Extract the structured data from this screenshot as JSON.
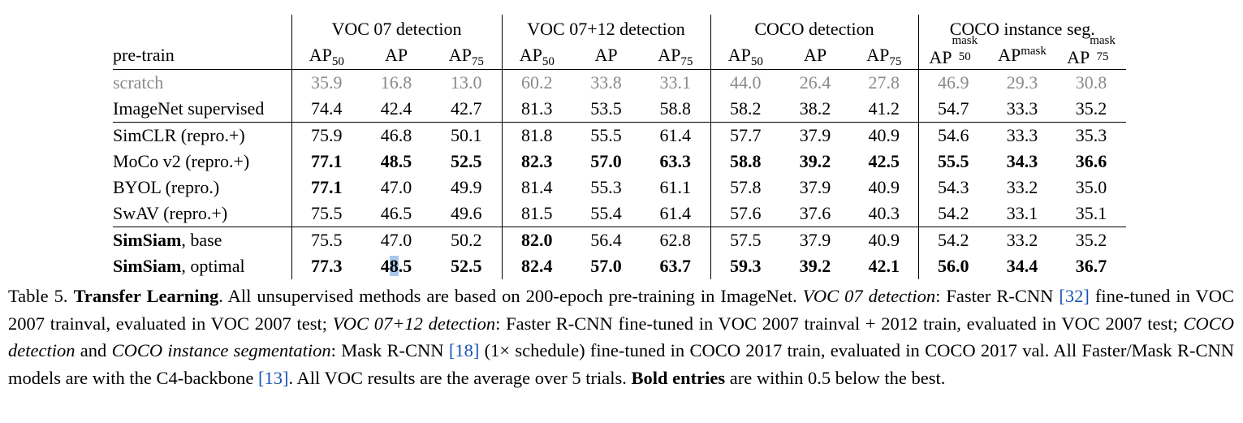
{
  "table": {
    "groups": [
      "VOC 07 detection",
      "VOC 07+12 detection",
      "COCO detection",
      "COCO instance seg."
    ],
    "pretrain_header": "pre-train",
    "col_base": [
      "AP",
      "AP",
      "AP",
      "AP",
      "AP",
      "AP",
      "AP",
      "AP",
      "AP",
      "AP",
      "AP",
      "AP"
    ],
    "col_sub": [
      "50",
      "",
      "75",
      "50",
      "",
      "75",
      "50",
      "",
      "75",
      "50",
      "",
      "75"
    ],
    "col_sup": [
      "",
      "",
      "",
      "",
      "",
      "",
      "",
      "",
      "",
      "mask",
      "mask",
      "mask"
    ],
    "rows": [
      {
        "name": "scratch",
        "name_bold": "",
        "values": [
          "35.9",
          "16.8",
          "13.0",
          "60.2",
          "33.8",
          "33.1",
          "44.0",
          "26.4",
          "27.8",
          "46.9",
          "29.3",
          "30.8"
        ],
        "bold": []
      },
      {
        "name": "ImageNet supervised",
        "name_bold": "",
        "values": [
          "74.4",
          "42.4",
          "42.7",
          "81.3",
          "53.5",
          "58.8",
          "58.2",
          "38.2",
          "41.2",
          "54.7",
          "33.3",
          "35.2"
        ],
        "bold": []
      },
      {
        "name": "SimCLR (repro.+)",
        "name_bold": "",
        "values": [
          "75.9",
          "46.8",
          "50.1",
          "81.8",
          "55.5",
          "61.4",
          "57.7",
          "37.9",
          "40.9",
          "54.6",
          "33.3",
          "35.3"
        ],
        "bold": []
      },
      {
        "name": "MoCo v2 (repro.+)",
        "name_bold": "",
        "values": [
          "77.1",
          "48.5",
          "52.5",
          "82.3",
          "57.0",
          "63.3",
          "58.8",
          "39.2",
          "42.5",
          "55.5",
          "34.3",
          "36.6"
        ],
        "bold": [
          0,
          1,
          2,
          3,
          4,
          5,
          6,
          7,
          8,
          9,
          10,
          11
        ]
      },
      {
        "name": "BYOL (repro.)",
        "name_bold": "",
        "values": [
          "77.1",
          "47.0",
          "49.9",
          "81.4",
          "55.3",
          "61.1",
          "57.8",
          "37.9",
          "40.9",
          "54.3",
          "33.2",
          "35.0"
        ],
        "bold": [
          0
        ]
      },
      {
        "name": "SwAV (repro.+)",
        "name_bold": "",
        "values": [
          "75.5",
          "46.5",
          "49.6",
          "81.5",
          "55.4",
          "61.4",
          "57.6",
          "37.6",
          "40.3",
          "54.2",
          "33.1",
          "35.1"
        ],
        "bold": []
      },
      {
        "name": ", base",
        "name_bold": "SimSiam",
        "values": [
          "75.5",
          "47.0",
          "50.2",
          "82.0",
          "56.4",
          "62.8",
          "57.5",
          "37.9",
          "40.9",
          "54.2",
          "33.2",
          "35.2"
        ],
        "bold": [
          3
        ]
      },
      {
        "name": ", optimal",
        "name_bold": "SimSiam",
        "values": [
          "77.3",
          "48.5",
          "52.5",
          "82.4",
          "57.0",
          "63.7",
          "59.3",
          "39.2",
          "42.1",
          "56.0",
          "34.4",
          "36.7"
        ],
        "bold": [
          0,
          1,
          2,
          3,
          4,
          5,
          6,
          7,
          8,
          9,
          10,
          11
        ]
      }
    ]
  },
  "caption": {
    "t1": "Table 5. ",
    "t2": "Transfer Learning",
    "t3": ". All unsupervised methods are based on 200-epoch pre-training in ImageNet. ",
    "t4": "VOC 07 detection",
    "t5": ": Faster R-CNN ",
    "t6": "[32]",
    "t7": " fine-tuned in VOC 2007 trainval, evaluated in VOC 2007 test; ",
    "t8": "VOC 07+12 detection",
    "t9": ": Faster R-CNN fine-tuned in VOC 2007 trainval + 2012 train, evaluated in VOC 2007 test; ",
    "t10": "COCO detection",
    "t11": " and ",
    "t12": "COCO instance segmentation",
    "t13": ": Mask R-CNN ",
    "t14": "[18]",
    "t15": " (1× schedule) fine-tuned in COCO 2017 train, evaluated in COCO 2017 val. All Faster/Mask R-CNN models are with the C4-backbone ",
    "t16": "[13]",
    "t17": ". All VOC results are the average over 5 trials. ",
    "t18": "Bold entries",
    "t19": " are within 0.5 below the best."
  }
}
